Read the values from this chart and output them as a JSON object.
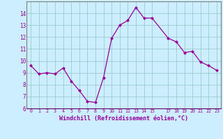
{
  "x": [
    0,
    1,
    2,
    3,
    4,
    5,
    6,
    7,
    8,
    9,
    10,
    11,
    12,
    13,
    14,
    15,
    17,
    18,
    19,
    20,
    21,
    22,
    23
  ],
  "y": [
    9.6,
    8.9,
    9.0,
    8.9,
    9.4,
    8.3,
    7.5,
    6.6,
    6.5,
    8.6,
    11.9,
    13.0,
    13.4,
    14.5,
    13.6,
    13.6,
    11.9,
    11.6,
    10.7,
    10.8,
    9.9,
    9.6,
    9.2
  ],
  "line_color": "#990099",
  "marker_color": "#990099",
  "bg_color": "#cceeff",
  "grid_color": "#99cccc",
  "xlabel": "Windchill (Refroidissement éolien,°C)",
  "ylim": [
    6,
    15
  ],
  "xlim": [
    -0.5,
    23.5
  ],
  "yticks": [
    6,
    7,
    8,
    9,
    10,
    11,
    12,
    13,
    14
  ],
  "xticks": [
    0,
    1,
    2,
    3,
    4,
    5,
    6,
    7,
    8,
    9,
    10,
    11,
    12,
    13,
    14,
    15,
    17,
    18,
    19,
    20,
    21,
    22,
    23
  ],
  "tick_color": "#990099",
  "label_color": "#990099",
  "spine_color": "#808080",
  "bottom_spine_color": "#660066"
}
